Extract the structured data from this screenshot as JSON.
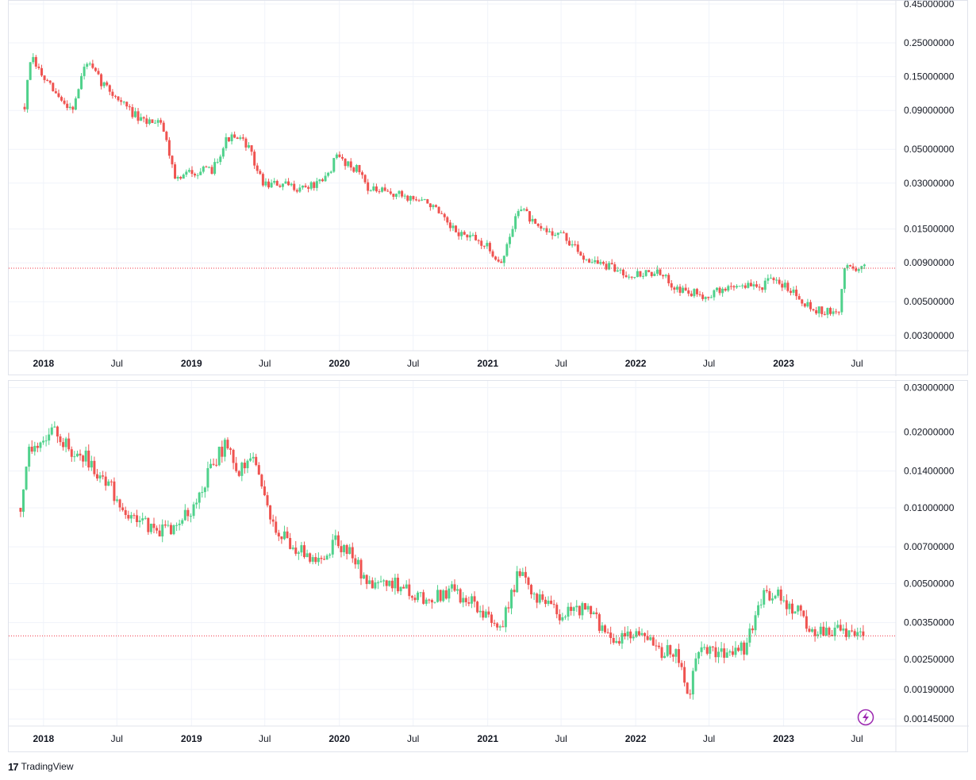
{
  "colors": {
    "up": "#26a69a",
    "up_light": "#4fd18b",
    "down": "#ef5350",
    "grid": "#f0f3fa",
    "price_line": "#f23645",
    "axis_text": "#131722",
    "lightning": "#9c27b0"
  },
  "footer": {
    "brand": "TradingView",
    "logo": "17"
  },
  "x_axis_labels": [
    "2018",
    "Jul",
    "2019",
    "Jul",
    "2020",
    "Jul",
    "2021",
    "Jul",
    "2022",
    "Jul",
    "2023",
    "Jul"
  ],
  "chart_data": [
    {
      "type": "candlestick",
      "scale": "log",
      "ylim": [
        0.0025,
        0.45
      ],
      "y_ticks": [
        "0.45000000",
        "0.25000000",
        "0.15000000",
        "0.09000000",
        "0.05000000",
        "0.03000000",
        "0.01500000",
        "0.00900000",
        "0.00500000",
        "0.00300000"
      ],
      "last_price": 0.0083,
      "anchors": [
        [
          "2017-12-05",
          0.095
        ],
        [
          "2017-12-20",
          0.2
        ],
        [
          "2018-01-25",
          0.14
        ],
        [
          "2018-03-10",
          0.1
        ],
        [
          "2018-04-05",
          0.095
        ],
        [
          "2018-05-05",
          0.19
        ],
        [
          "2018-06-10",
          0.14
        ],
        [
          "2018-08-05",
          0.1
        ],
        [
          "2018-09-20",
          0.075
        ],
        [
          "2018-11-05",
          0.08
        ],
        [
          "2018-12-15",
          0.031
        ],
        [
          "2019-01-20",
          0.036
        ],
        [
          "2019-03-10",
          0.036
        ],
        [
          "2019-04-20",
          0.06
        ],
        [
          "2019-06-05",
          0.055
        ],
        [
          "2019-07-15",
          0.03
        ],
        [
          "2019-10-20",
          0.028
        ],
        [
          "2019-12-10",
          0.03
        ],
        [
          "2020-01-15",
          0.045
        ],
        [
          "2020-03-10",
          0.036
        ],
        [
          "2020-04-05",
          0.027
        ],
        [
          "2020-06-20",
          0.025
        ],
        [
          "2020-09-01",
          0.022
        ],
        [
          "2020-10-20",
          0.015
        ],
        [
          "2021-01-10",
          0.012
        ],
        [
          "2021-02-25",
          0.009
        ],
        [
          "2021-04-10",
          0.022
        ],
        [
          "2021-05-20",
          0.015
        ],
        [
          "2021-07-20",
          0.014
        ],
        [
          "2021-09-10",
          0.01
        ],
        [
          "2021-11-10",
          0.0085
        ],
        [
          "2022-01-15",
          0.0075
        ],
        [
          "2022-03-10",
          0.0078
        ],
        [
          "2022-05-20",
          0.0058
        ],
        [
          "2022-07-15",
          0.0055
        ],
        [
          "2022-10-01",
          0.0065
        ],
        [
          "2022-11-20",
          0.0062
        ],
        [
          "2022-12-15",
          0.0068
        ],
        [
          "2023-02-01",
          0.0063
        ],
        [
          "2023-04-01",
          0.0045
        ],
        [
          "2023-06-05",
          0.0041
        ],
        [
          "2023-06-20",
          0.0085
        ],
        [
          "2023-08-10",
          0.0083
        ]
      ]
    },
    {
      "type": "candlestick",
      "scale": "log",
      "ylim": [
        0.0014,
        0.031
      ],
      "y_ticks": [
        "0.03000000",
        "0.02000000",
        "0.01400000",
        "0.01000000",
        "0.00700000",
        "0.00500000",
        "0.00350000",
        "0.00250000",
        "0.00190000",
        "0.00145000"
      ],
      "last_price": 0.0031,
      "anchors": [
        [
          "2017-11-25",
          0.01
        ],
        [
          "2017-12-15",
          0.017
        ],
        [
          "2018-01-15",
          0.019
        ],
        [
          "2018-02-20",
          0.02
        ],
        [
          "2018-03-25",
          0.017
        ],
        [
          "2018-05-05",
          0.016
        ],
        [
          "2018-07-05",
          0.012
        ],
        [
          "2018-08-15",
          0.0095
        ],
        [
          "2018-10-05",
          0.0085
        ],
        [
          "2018-11-15",
          0.008
        ],
        [
          "2019-01-15",
          0.0095
        ],
        [
          "2019-03-15",
          0.015
        ],
        [
          "2019-04-15",
          0.018
        ],
        [
          "2019-05-15",
          0.014
        ],
        [
          "2019-06-15",
          0.016
        ],
        [
          "2019-08-20",
          0.008
        ],
        [
          "2019-10-10",
          0.0068
        ],
        [
          "2019-12-10",
          0.006
        ],
        [
          "2020-01-10",
          0.0075
        ],
        [
          "2020-02-20",
          0.0065
        ],
        [
          "2020-04-10",
          0.0047
        ],
        [
          "2020-06-20",
          0.005
        ],
        [
          "2020-08-20",
          0.0042
        ],
        [
          "2020-10-20",
          0.0047
        ],
        [
          "2020-12-20",
          0.0042
        ],
        [
          "2021-02-20",
          0.0033
        ],
        [
          "2021-04-05",
          0.0055
        ],
        [
          "2021-05-20",
          0.0045
        ],
        [
          "2021-07-20",
          0.0038
        ],
        [
          "2021-09-20",
          0.004
        ],
        [
          "2021-11-20",
          0.003
        ],
        [
          "2022-02-10",
          0.0032
        ],
        [
          "2022-03-20",
          0.0027
        ],
        [
          "2022-05-01",
          0.0027
        ],
        [
          "2022-06-01",
          0.0018
        ],
        [
          "2022-06-20",
          0.0026
        ],
        [
          "2022-09-01",
          0.0027
        ],
        [
          "2022-10-20",
          0.0028
        ],
        [
          "2022-12-01",
          0.0045
        ],
        [
          "2023-01-10",
          0.0045
        ],
        [
          "2023-03-01",
          0.0038
        ],
        [
          "2023-04-10",
          0.0032
        ],
        [
          "2023-06-15",
          0.0033
        ],
        [
          "2023-07-10",
          0.0032
        ],
        [
          "2023-08-10",
          0.0031
        ]
      ]
    }
  ]
}
